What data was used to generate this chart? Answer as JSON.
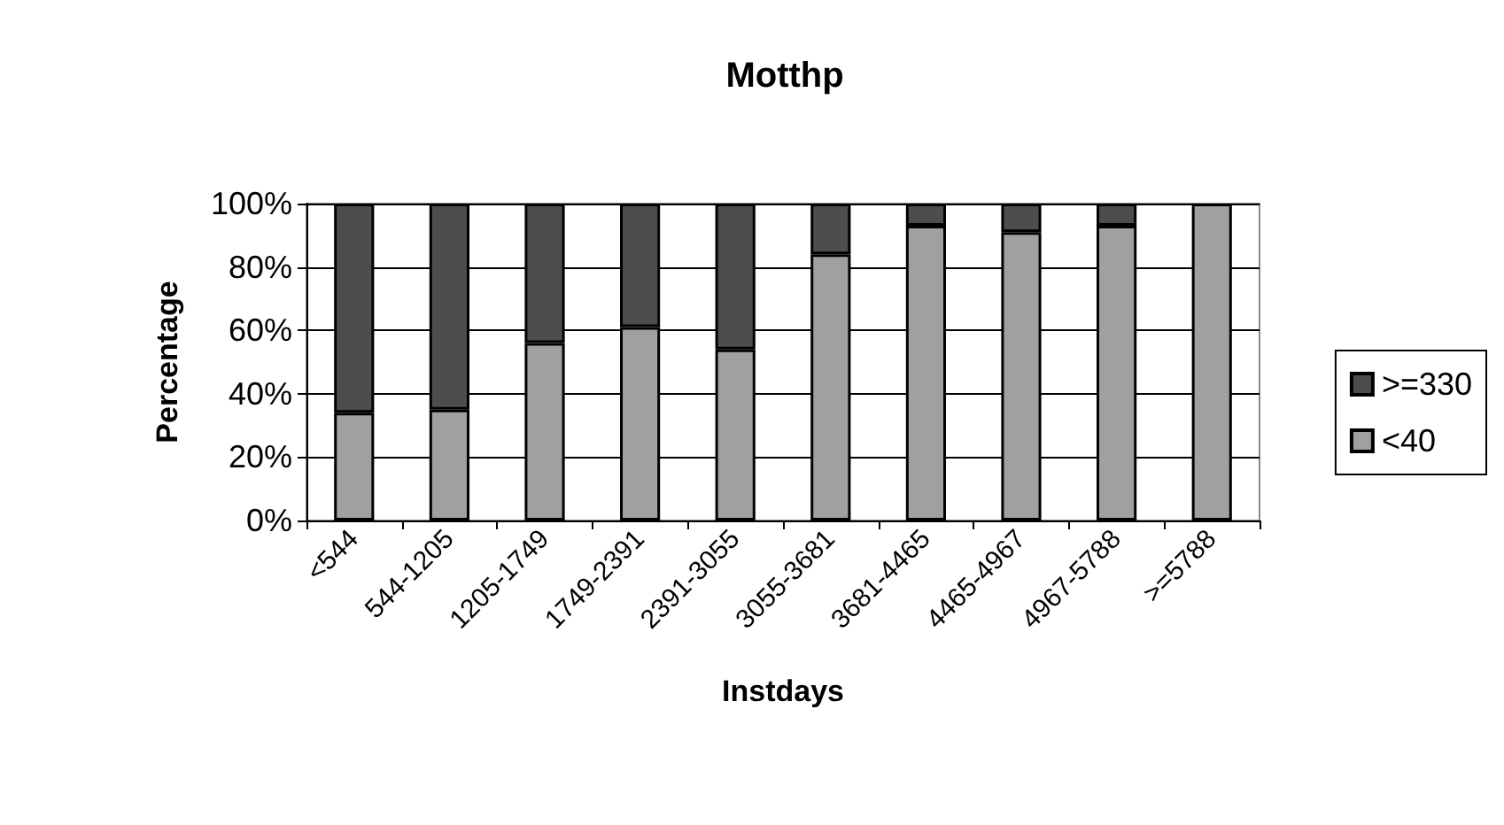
{
  "chart_data": {
    "type": "bar",
    "title": "Motthp",
    "xlabel": "Instdays",
    "ylabel": "Percentage",
    "stacked": true,
    "grid": "y",
    "legend": "right",
    "categories": [
      "<544",
      "544-1205",
      "1205-1749",
      "1749-2391",
      "2391-3055",
      "3055-3681",
      "3681-4465",
      "4465-4967",
      "4967-5788",
      ">=5788"
    ],
    "series": [
      {
        "name": "<40",
        "color": "#a0a0a0",
        "values": [
          34,
          35,
          56,
          61,
          54,
          84,
          93,
          91,
          93,
          100
        ]
      },
      {
        "name": ">=330",
        "color": "#4d4d4d",
        "values": [
          66,
          65,
          44,
          39,
          46,
          16,
          7,
          9,
          7,
          0
        ]
      }
    ],
    "ylim": [
      0,
      100
    ],
    "yticks": [
      {
        "value": 0,
        "label": "0%"
      },
      {
        "value": 20,
        "label": "20%"
      },
      {
        "value": 40,
        "label": "40%"
      },
      {
        "value": 60,
        "label": "60%"
      },
      {
        "value": 80,
        "label": "80%"
      },
      {
        "value": 100,
        "label": "100%"
      }
    ]
  }
}
